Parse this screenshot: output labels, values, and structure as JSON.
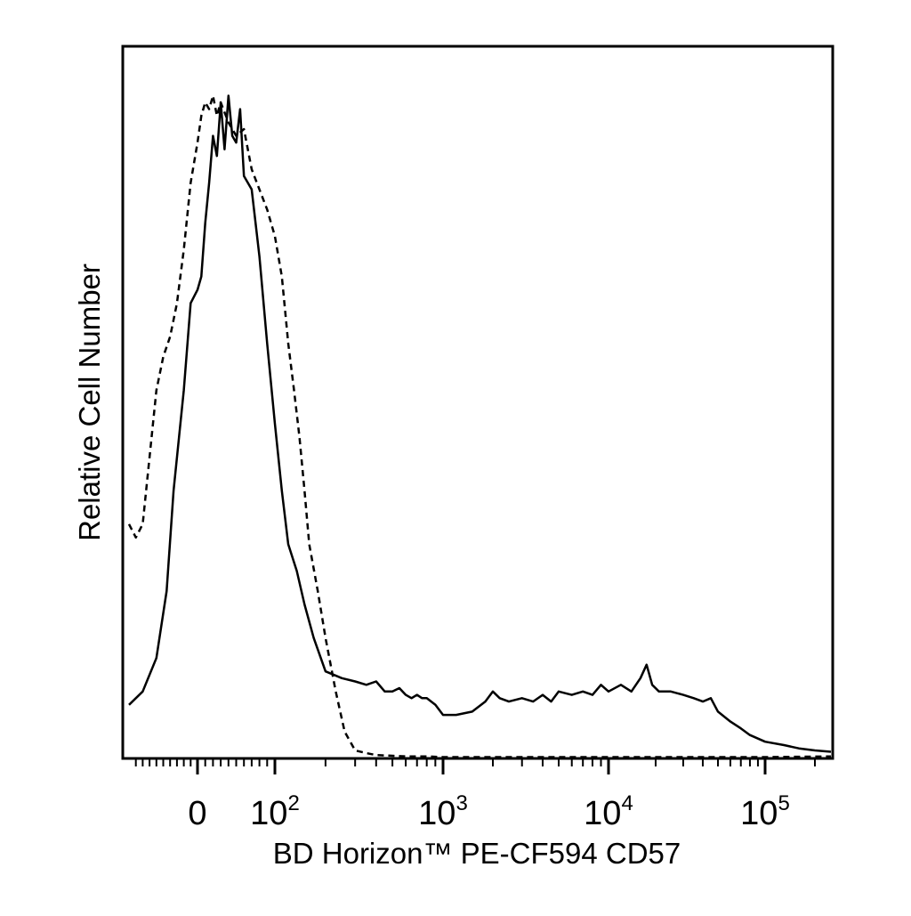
{
  "chart_data": {
    "type": "line",
    "title": "",
    "xlabel": "BD Horizon™ PE-CF594 CD57",
    "ylabel": "Relative Cell Number",
    "x_scale": "biexponential (logicle)",
    "x_range": [
      -100,
      250000
    ],
    "y_range": [
      0,
      1
    ],
    "grid": false,
    "legend": "none",
    "colors": {
      "line": "#000000",
      "background": "#ffffff",
      "axes": "#000000"
    },
    "x_tick_labels": [
      {
        "value": 0,
        "base": "0",
        "exp": ""
      },
      {
        "value": 100,
        "base": "10",
        "exp": "2"
      },
      {
        "value": 1000,
        "base": "10",
        "exp": "3"
      },
      {
        "value": 10000,
        "base": "10",
        "exp": "4"
      },
      {
        "value": 100000,
        "base": "10",
        "exp": "5"
      }
    ],
    "series": [
      {
        "style": "solid",
        "x": [
          -100,
          -80,
          -60,
          -45,
          -35,
          -20,
          -10,
          0,
          5,
          10,
          15,
          20,
          25,
          30,
          35,
          40,
          45,
          50,
          55,
          60,
          70,
          80,
          90,
          100,
          110,
          120,
          135,
          150,
          170,
          200,
          250,
          300,
          350,
          400,
          450,
          500,
          550,
          600,
          650,
          700,
          750,
          800,
          900,
          1000,
          1200,
          1500,
          1800,
          2000,
          2200,
          2500,
          3000,
          3500,
          4000,
          4500,
          5000,
          6000,
          7000,
          8000,
          9000,
          10000,
          12000,
          14000,
          16000,
          17500,
          19000,
          21000,
          25000,
          30000,
          35000,
          40000,
          45000,
          50000,
          60000,
          70000,
          80000,
          100000,
          130000,
          160000,
          200000,
          250000
        ],
        "y": [
          0.08,
          0.1,
          0.15,
          0.25,
          0.4,
          0.55,
          0.68,
          0.7,
          0.72,
          0.8,
          0.86,
          0.93,
          0.9,
          0.98,
          0.91,
          0.99,
          0.93,
          0.92,
          0.97,
          0.87,
          0.85,
          0.75,
          0.62,
          0.5,
          0.4,
          0.32,
          0.28,
          0.23,
          0.18,
          0.13,
          0.12,
          0.115,
          0.11,
          0.115,
          0.1,
          0.1,
          0.105,
          0.095,
          0.09,
          0.095,
          0.09,
          0.09,
          0.08,
          0.065,
          0.065,
          0.07,
          0.085,
          0.1,
          0.09,
          0.085,
          0.09,
          0.085,
          0.095,
          0.085,
          0.1,
          0.095,
          0.1,
          0.095,
          0.11,
          0.1,
          0.11,
          0.1,
          0.12,
          0.14,
          0.11,
          0.1,
          0.1,
          0.095,
          0.09,
          0.085,
          0.09,
          0.07,
          0.055,
          0.045,
          0.035,
          0.025,
          0.02,
          0.015,
          0.012,
          0.01
        ]
      },
      {
        "style": "dashed",
        "x": [
          -100,
          -90,
          -80,
          -70,
          -60,
          -50,
          -40,
          -30,
          -20,
          -10,
          0,
          5,
          10,
          15,
          20,
          25,
          30,
          40,
          50,
          60,
          70,
          80,
          90,
          100,
          110,
          120,
          130,
          140,
          150,
          160,
          180,
          200,
          230,
          260,
          300,
          350,
          400,
          500,
          600,
          800,
          1000,
          2000,
          5000,
          10000,
          50000,
          100000,
          250000
        ],
        "y": [
          0.35,
          0.33,
          0.35,
          0.45,
          0.55,
          0.6,
          0.63,
          0.68,
          0.76,
          0.86,
          0.92,
          0.96,
          0.98,
          0.97,
          0.99,
          0.96,
          0.98,
          0.95,
          0.93,
          0.94,
          0.88,
          0.85,
          0.82,
          0.78,
          0.72,
          0.62,
          0.55,
          0.48,
          0.4,
          0.32,
          0.25,
          0.18,
          0.1,
          0.04,
          0.012,
          0.008,
          0.005,
          0.004,
          0.003,
          0.003,
          0.002,
          0.002,
          0.002,
          0.002,
          0.002,
          0.002,
          0.003
        ]
      }
    ]
  }
}
